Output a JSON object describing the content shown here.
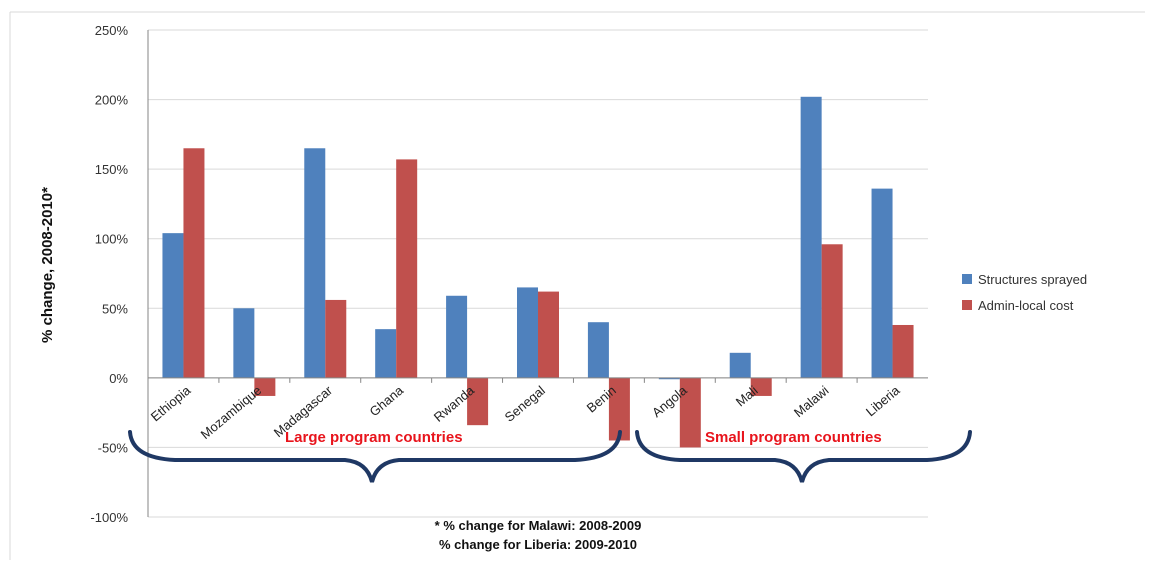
{
  "chart_data": {
    "type": "bar",
    "ylabel": "% change, 2008-2010*",
    "ylim": [
      -100,
      250
    ],
    "yticks": [
      "-100%",
      "-50%",
      "0%",
      "50%",
      "100%",
      "150%",
      "200%",
      "250%"
    ],
    "grid": true,
    "legend_position": "right",
    "categories": [
      "Ethiopia",
      "Mozambique",
      "Madagascar",
      "Ghana",
      "Rwanda",
      "Senegal",
      "Benin",
      "Angola",
      "Mali",
      "Malawi",
      "Liberia"
    ],
    "series": [
      {
        "name": "Structures sprayed",
        "color": "#4f81bd",
        "values": [
          104,
          50,
          165,
          35,
          59,
          65,
          40,
          -1,
          18,
          202,
          136
        ]
      },
      {
        "name": "Admin-local cost",
        "color": "#c0504d",
        "values": [
          165,
          -13,
          56,
          157,
          -34,
          62,
          -45,
          -50,
          -13,
          96,
          38
        ]
      }
    ],
    "annotations": {
      "large_group": "Large program countries",
      "small_group": "Small program countries",
      "brace_color": "#1f3864",
      "group_label_color": "#e8141c"
    },
    "footnotes": [
      "* % change for Malawi: 2008-2009",
      "% change for Liberia: 2009-2010"
    ]
  }
}
